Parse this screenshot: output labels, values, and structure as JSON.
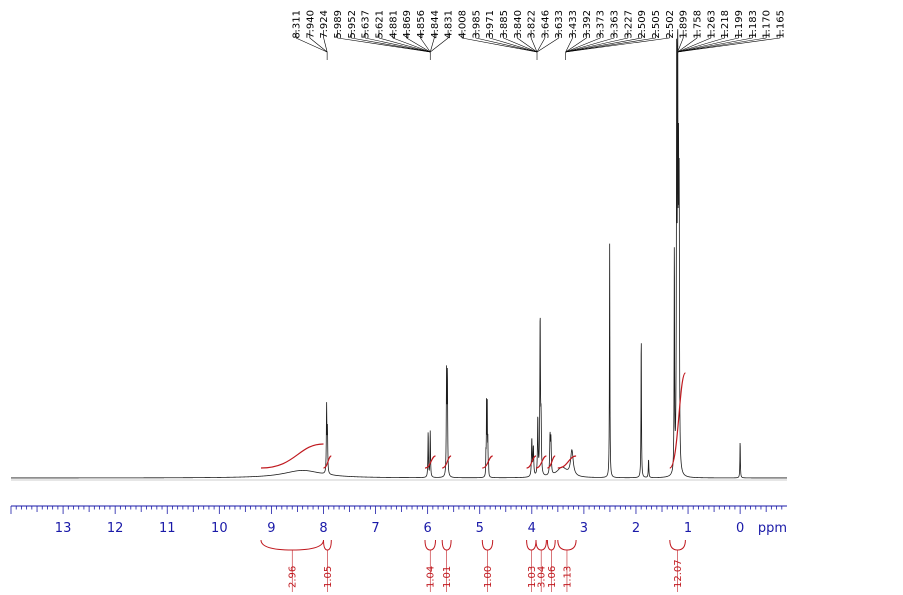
{
  "chart_data": {
    "type": "line",
    "title": "",
    "xlabel": "ppm",
    "ylabel": "",
    "xlim": [
      14,
      -0.9
    ],
    "x_reversed": true,
    "x_ticks": [
      13,
      12,
      11,
      10,
      9,
      8,
      7,
      6,
      5,
      4,
      3,
      2,
      1,
      0
    ],
    "x_tick_labels": [
      "13",
      "12",
      "11",
      "10",
      "9",
      "8",
      "7",
      "6",
      "5",
      "4",
      "3",
      "2",
      "1",
      "0"
    ],
    "axis_unit": "ppm",
    "peak_labels": [
      "8.311",
      "7.940",
      "7.924",
      "5.989",
      "5.952",
      "5.637",
      "5.621",
      "4.881",
      "4.869",
      "4.856",
      "4.844",
      "4.831",
      "4.008",
      "3.985",
      "3.971",
      "3.885",
      "3.840",
      "3.822",
      "3.646",
      "3.633",
      "3.433",
      "3.392",
      "3.373",
      "3.363",
      "3.227",
      "2.509",
      "2.505",
      "2.502",
      "1.899",
      "1.758",
      "1.263",
      "1.218",
      "1.199",
      "1.183",
      "1.170",
      "1.165"
    ],
    "peak_label_groups": [
      {
        "labels": [
          "8.311",
          "7.940",
          "7.924"
        ],
        "shift": 7.93
      },
      {
        "labels": [
          "5.989",
          "5.952",
          "5.637",
          "5.621",
          "4.881",
          "4.869",
          "4.856",
          "4.844",
          "4.831"
        ],
        "shift": 5.95
      },
      {
        "labels": [
          "4.008",
          "3.985",
          "3.971",
          "3.885",
          "3.840",
          "3.822",
          "3.646",
          "3.633"
        ],
        "shift": 3.9
      },
      {
        "labels": [
          "3.433",
          "3.392",
          "3.373",
          "3.363",
          "3.227",
          "2.509",
          "2.505",
          "2.502"
        ],
        "shift": 3.35
      },
      {
        "labels": [
          "1.899",
          "1.758",
          "1.263",
          "1.218",
          "1.199",
          "1.183",
          "1.170",
          "1.165"
        ],
        "shift": 1.2
      }
    ],
    "integrations": [
      {
        "from": 9.2,
        "to": 8.0,
        "label": "2.96"
      },
      {
        "from": 8.0,
        "to": 7.85,
        "label": "1.05"
      },
      {
        "from": 6.05,
        "to": 5.85,
        "label": "1.04"
      },
      {
        "from": 5.72,
        "to": 5.55,
        "label": "1.01"
      },
      {
        "from": 4.95,
        "to": 4.75,
        "label": "1.00"
      },
      {
        "from": 4.1,
        "to": 3.92,
        "label": "1.03"
      },
      {
        "from": 3.92,
        "to": 3.72,
        "label": "3.04"
      },
      {
        "from": 3.7,
        "to": 3.55,
        "label": "1.06"
      },
      {
        "from": 3.5,
        "to": 3.15,
        "label": "1.13"
      },
      {
        "from": 1.35,
        "to": 1.05,
        "label": "12.07"
      }
    ],
    "peaks": [
      {
        "ppm": 8.4,
        "height": 0.018,
        "width": 0.45
      },
      {
        "ppm": 7.94,
        "height": 0.16,
        "width": 0.006
      },
      {
        "ppm": 7.924,
        "height": 0.1,
        "width": 0.006
      },
      {
        "ppm": 5.99,
        "height": 0.11,
        "width": 0.006
      },
      {
        "ppm": 5.95,
        "height": 0.11,
        "width": 0.006
      },
      {
        "ppm": 5.637,
        "height": 0.24,
        "width": 0.006
      },
      {
        "ppm": 5.621,
        "height": 0.24,
        "width": 0.006
      },
      {
        "ppm": 4.881,
        "height": 0.05,
        "width": 0.004
      },
      {
        "ppm": 4.869,
        "height": 0.18,
        "width": 0.004
      },
      {
        "ppm": 4.856,
        "height": 0.17,
        "width": 0.004
      },
      {
        "ppm": 4.844,
        "height": 0.08,
        "width": 0.004
      },
      {
        "ppm": 4.831,
        "height": 0.03,
        "width": 0.004
      },
      {
        "ppm": 4.0,
        "height": 0.09,
        "width": 0.008
      },
      {
        "ppm": 3.97,
        "height": 0.07,
        "width": 0.008
      },
      {
        "ppm": 3.885,
        "height": 0.14,
        "width": 0.007
      },
      {
        "ppm": 3.84,
        "height": 0.38,
        "width": 0.007
      },
      {
        "ppm": 3.822,
        "height": 0.12,
        "width": 0.007
      },
      {
        "ppm": 3.65,
        "height": 0.09,
        "width": 0.008
      },
      {
        "ppm": 3.633,
        "height": 0.08,
        "width": 0.008
      },
      {
        "ppm": 3.42,
        "height": 0.024,
        "width": 0.12
      },
      {
        "ppm": 3.23,
        "height": 0.06,
        "width": 0.03
      },
      {
        "ppm": 2.505,
        "height": 0.56,
        "width": 0.005
      },
      {
        "ppm": 1.899,
        "height": 0.35,
        "width": 0.005
      },
      {
        "ppm": 1.758,
        "height": 0.045,
        "width": 0.006
      },
      {
        "ppm": 1.263,
        "height": 0.55,
        "width": 0.005
      },
      {
        "ppm": 1.218,
        "height": 1.0,
        "width": 0.006
      },
      {
        "ppm": 1.199,
        "height": 0.95,
        "width": 0.006
      },
      {
        "ppm": 1.183,
        "height": 0.6,
        "width": 0.006
      },
      {
        "ppm": 1.17,
        "height": 0.6,
        "width": 0.006
      },
      {
        "ppm": 0.0,
        "height": 0.09,
        "width": 0.005
      }
    ],
    "colors": {
      "spectrum": "#1c1c1c",
      "axis": "#1a1aa8",
      "integral": "#c0191f",
      "peak_label_lines": "#000000"
    }
  }
}
